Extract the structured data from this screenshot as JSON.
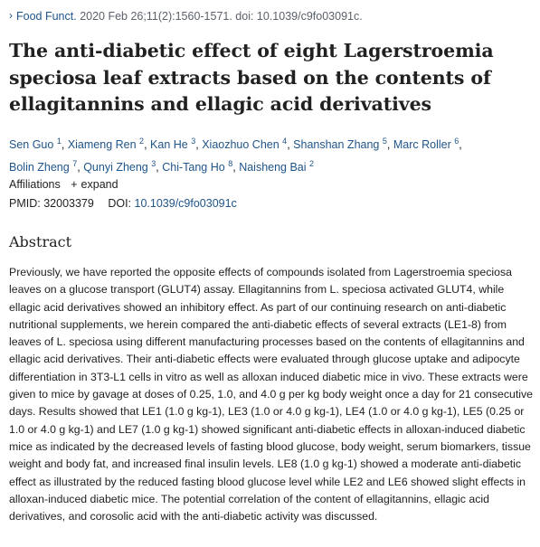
{
  "citation": {
    "journal": "Food Funct.",
    "details": "2020 Feb 26;11(2):1560-1571. doi: 10.1039/c9fo03091c."
  },
  "title": "The anti-diabetic effect of eight Lagerstroemia speciosa leaf extracts based on the contents of ellagitannins and ellagic acid derivatives",
  "authors": [
    {
      "name": "Sen Guo",
      "aff": "1"
    },
    {
      "name": "Xiameng Ren",
      "aff": "2"
    },
    {
      "name": "Kan He",
      "aff": "3"
    },
    {
      "name": "Xiaozhuo Chen",
      "aff": "4"
    },
    {
      "name": "Shanshan Zhang",
      "aff": "5"
    },
    {
      "name": "Marc Roller",
      "aff": "6"
    },
    {
      "name": "Bolin Zheng",
      "aff": "7"
    },
    {
      "name": "Qunyi Zheng",
      "aff": "3"
    },
    {
      "name": "Chi-Tang Ho",
      "aff": "8"
    },
    {
      "name": "Naisheng Bai",
      "aff": "2"
    }
  ],
  "affiliations": {
    "label": "Affiliations",
    "expand": "expand"
  },
  "ids": {
    "pmid_label": "PMID:",
    "pmid": "32003379",
    "doi_label": "DOI:",
    "doi": "10.1039/c9fo03091c"
  },
  "abstract": {
    "heading": "Abstract",
    "text": "Previously, we have reported the opposite effects of compounds isolated from Lagerstroemia speciosa leaves on a glucose transport (GLUT4) assay. Ellagitannins from L. speciosa activated GLUT4, while ellagic acid derivatives showed an inhibitory effect. As part of our continuing research on anti-diabetic nutritional supplements, we herein compared the anti-diabetic effects of several extracts (LE1-8) from leaves of L. speciosa using different manufacturing processes based on the contents of ellagitannins and ellagic acid derivatives. Their anti-diabetic effects were evaluated through glucose uptake and adipocyte differentiation in 3T3-L1 cells in vitro as well as alloxan induced diabetic mice in vivo. These extracts were given to mice by gavage at doses of 0.25, 1.0, and 4.0 g per kg body weight once a day for 21 consecutive days. Results showed that LE1 (1.0 g kg-1), LE3 (1.0 or 4.0 g kg-1), LE4 (1.0 or 4.0 g kg-1), LE5 (0.25 or 1.0 or 4.0 g kg-1) and LE7 (1.0 g kg-1) showed significant anti-diabetic effects in alloxan-induced diabetic mice as indicated by the decreased levels of fasting blood glucose, body weight, serum biomarkers, tissue weight and body fat, and increased final insulin levels. LE8 (1.0 g kg-1) showed a moderate anti-diabetic effect as illustrated by the reduced fasting blood glucose level while LE2 and LE6 showed slight effects in alloxan-induced diabetic mice. The potential correlation of the content of ellagitannins, ellagic acid derivatives, and corosolic acid with the anti-diabetic activity was discussed."
  }
}
